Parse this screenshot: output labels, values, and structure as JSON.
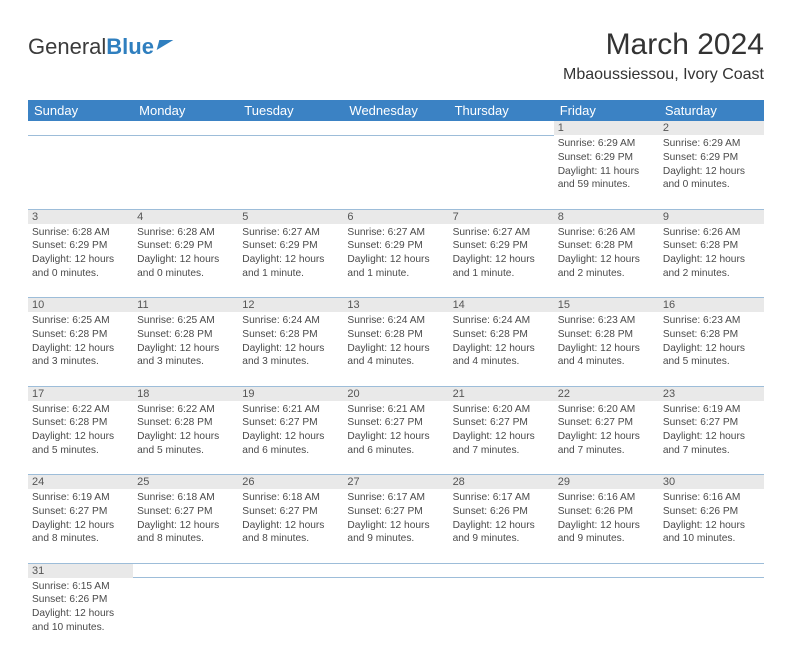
{
  "logo": {
    "text1": "General",
    "text2": "Blue"
  },
  "title": "March 2024",
  "location": "Mbaoussiessou, Ivory Coast",
  "colors": {
    "header_bg": "#3b82c4",
    "header_text": "#ffffff",
    "daynum_bg": "#e9e9e9",
    "border": "#9dbdd9",
    "body_text": "#4a4a4a",
    "logo_blue": "#2f7fbf"
  },
  "weekdays": [
    "Sunday",
    "Monday",
    "Tuesday",
    "Wednesday",
    "Thursday",
    "Friday",
    "Saturday"
  ],
  "weeks": [
    [
      null,
      null,
      null,
      null,
      null,
      {
        "d": "1",
        "sr": "6:29 AM",
        "ss": "6:29 PM",
        "dl": "11 hours and 59 minutes."
      },
      {
        "d": "2",
        "sr": "6:29 AM",
        "ss": "6:29 PM",
        "dl": "12 hours and 0 minutes."
      }
    ],
    [
      {
        "d": "3",
        "sr": "6:28 AM",
        "ss": "6:29 PM",
        "dl": "12 hours and 0 minutes."
      },
      {
        "d": "4",
        "sr": "6:28 AM",
        "ss": "6:29 PM",
        "dl": "12 hours and 0 minutes."
      },
      {
        "d": "5",
        "sr": "6:27 AM",
        "ss": "6:29 PM",
        "dl": "12 hours and 1 minute."
      },
      {
        "d": "6",
        "sr": "6:27 AM",
        "ss": "6:29 PM",
        "dl": "12 hours and 1 minute."
      },
      {
        "d": "7",
        "sr": "6:27 AM",
        "ss": "6:29 PM",
        "dl": "12 hours and 1 minute."
      },
      {
        "d": "8",
        "sr": "6:26 AM",
        "ss": "6:28 PM",
        "dl": "12 hours and 2 minutes."
      },
      {
        "d": "9",
        "sr": "6:26 AM",
        "ss": "6:28 PM",
        "dl": "12 hours and 2 minutes."
      }
    ],
    [
      {
        "d": "10",
        "sr": "6:25 AM",
        "ss": "6:28 PM",
        "dl": "12 hours and 3 minutes."
      },
      {
        "d": "11",
        "sr": "6:25 AM",
        "ss": "6:28 PM",
        "dl": "12 hours and 3 minutes."
      },
      {
        "d": "12",
        "sr": "6:24 AM",
        "ss": "6:28 PM",
        "dl": "12 hours and 3 minutes."
      },
      {
        "d": "13",
        "sr": "6:24 AM",
        "ss": "6:28 PM",
        "dl": "12 hours and 4 minutes."
      },
      {
        "d": "14",
        "sr": "6:24 AM",
        "ss": "6:28 PM",
        "dl": "12 hours and 4 minutes."
      },
      {
        "d": "15",
        "sr": "6:23 AM",
        "ss": "6:28 PM",
        "dl": "12 hours and 4 minutes."
      },
      {
        "d": "16",
        "sr": "6:23 AM",
        "ss": "6:28 PM",
        "dl": "12 hours and 5 minutes."
      }
    ],
    [
      {
        "d": "17",
        "sr": "6:22 AM",
        "ss": "6:28 PM",
        "dl": "12 hours and 5 minutes."
      },
      {
        "d": "18",
        "sr": "6:22 AM",
        "ss": "6:28 PM",
        "dl": "12 hours and 5 minutes."
      },
      {
        "d": "19",
        "sr": "6:21 AM",
        "ss": "6:27 PM",
        "dl": "12 hours and 6 minutes."
      },
      {
        "d": "20",
        "sr": "6:21 AM",
        "ss": "6:27 PM",
        "dl": "12 hours and 6 minutes."
      },
      {
        "d": "21",
        "sr": "6:20 AM",
        "ss": "6:27 PM",
        "dl": "12 hours and 7 minutes."
      },
      {
        "d": "22",
        "sr": "6:20 AM",
        "ss": "6:27 PM",
        "dl": "12 hours and 7 minutes."
      },
      {
        "d": "23",
        "sr": "6:19 AM",
        "ss": "6:27 PM",
        "dl": "12 hours and 7 minutes."
      }
    ],
    [
      {
        "d": "24",
        "sr": "6:19 AM",
        "ss": "6:27 PM",
        "dl": "12 hours and 8 minutes."
      },
      {
        "d": "25",
        "sr": "6:18 AM",
        "ss": "6:27 PM",
        "dl": "12 hours and 8 minutes."
      },
      {
        "d": "26",
        "sr": "6:18 AM",
        "ss": "6:27 PM",
        "dl": "12 hours and 8 minutes."
      },
      {
        "d": "27",
        "sr": "6:17 AM",
        "ss": "6:27 PM",
        "dl": "12 hours and 9 minutes."
      },
      {
        "d": "28",
        "sr": "6:17 AM",
        "ss": "6:26 PM",
        "dl": "12 hours and 9 minutes."
      },
      {
        "d": "29",
        "sr": "6:16 AM",
        "ss": "6:26 PM",
        "dl": "12 hours and 9 minutes."
      },
      {
        "d": "30",
        "sr": "6:16 AM",
        "ss": "6:26 PM",
        "dl": "12 hours and 10 minutes."
      }
    ],
    [
      {
        "d": "31",
        "sr": "6:15 AM",
        "ss": "6:26 PM",
        "dl": "12 hours and 10 minutes."
      },
      null,
      null,
      null,
      null,
      null,
      null
    ]
  ],
  "labels": {
    "sunrise": "Sunrise: ",
    "sunset": "Sunset: ",
    "daylight": "Daylight: "
  }
}
